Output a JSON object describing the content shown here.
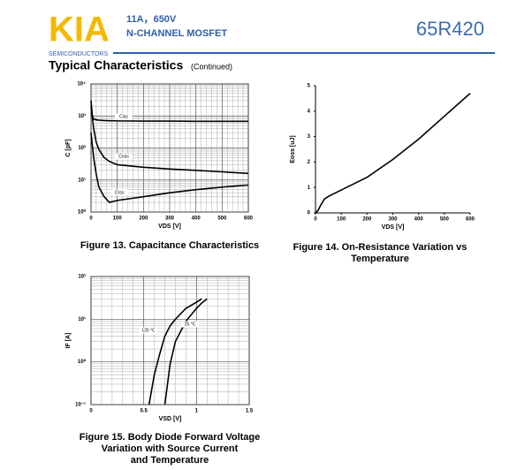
{
  "header": {
    "logo": "KIA",
    "company": "SEMICONDUCTORS",
    "rating": "11A，650V",
    "device": "N-CHANNEL MOSFET",
    "part_number": "65R420",
    "section": "Typical Characteristics",
    "section_note": "(Continued)"
  },
  "chart_data": [
    {
      "type": "line",
      "caption": [
        "Figure 13. Capacitance Characteristics"
      ],
      "x_label": "VDS [V]",
      "y_label": "C [pF]",
      "log_y": true,
      "grid": true,
      "x": [
        0,
        5,
        10,
        20,
        30,
        50,
        70,
        100,
        200,
        300,
        400,
        500,
        600
      ],
      "series": [
        {
          "name": "Ciss",
          "color": "#000000",
          "values": [
            3000,
            1000,
            800,
            760,
            740,
            720,
            710,
            700,
            690,
            690,
            680,
            680,
            680
          ]
        },
        {
          "name": "Coss",
          "color": "#000000",
          "values": [
            2000,
            900,
            400,
            150,
            90,
            50,
            38,
            30,
            25,
            22,
            20,
            18,
            16
          ]
        },
        {
          "name": "Crss",
          "color": "#000000",
          "values": [
            300,
            120,
            50,
            15,
            6,
            3,
            2,
            2.3,
            3,
            4,
            5,
            6,
            7
          ]
        }
      ],
      "xlim": [
        0,
        600
      ],
      "xticks": [
        0,
        100,
        200,
        300,
        400,
        500,
        600
      ],
      "ylim": [
        1,
        10000
      ],
      "yticks": [
        {
          "value": 1,
          "label": "10⁰"
        },
        {
          "value": 10,
          "label": "10¹"
        },
        {
          "value": 100,
          "label": "10²"
        },
        {
          "value": 1000,
          "label": "10³"
        },
        {
          "value": 10000,
          "label": "10⁴"
        }
      ]
    },
    {
      "type": "line",
      "caption": [
        "Figure 14. On-Resistance Variation  vs",
        "Temperature"
      ],
      "x_label": "VDS [V]",
      "y_label": "Eoss [uJ]",
      "log_y": false,
      "grid": false,
      "x": [
        0,
        10,
        20,
        35,
        50,
        100,
        200,
        300,
        400,
        500,
        600
      ],
      "series": [
        {
          "name": null,
          "color": "#000000",
          "values": [
            0,
            0.1,
            0.3,
            0.55,
            0.65,
            0.9,
            1.4,
            2.1,
            2.9,
            3.8,
            4.7
          ]
        }
      ],
      "xlim": [
        0,
        600
      ],
      "xticks": [
        0,
        100,
        200,
        300,
        400,
        500,
        600
      ],
      "ylim": [
        0,
        5
      ],
      "yticks": [
        0,
        1,
        2,
        3,
        4,
        5
      ]
    },
    {
      "type": "line",
      "caption": [
        "Figure 15. Body Diode Forward Voltage",
        "Variation with Source Current",
        "and Temperature"
      ],
      "x_label": "VSD [V]",
      "y_label": "IF [A]",
      "log_y": true,
      "grid": true,
      "x": [
        0.55,
        0.6,
        0.65,
        0.7,
        0.75,
        0.8,
        0.9,
        1.0,
        1.05,
        1.1
      ],
      "series": [
        {
          "name": "125 °C",
          "color": "#000000",
          "values": [
            0.1,
            0.5,
            1.5,
            4,
            7,
            10,
            18,
            25,
            30,
            null
          ]
        },
        {
          "name": "25 °C",
          "color": "#000000",
          "values": [
            null,
            null,
            null,
            0.1,
            0.9,
            3,
            9,
            18,
            24,
            30
          ]
        }
      ],
      "xlim": [
        0,
        1.5
      ],
      "xticks": [
        0,
        0.5,
        1,
        1.5
      ],
      "ylim": [
        0.1,
        100
      ],
      "yticks": [
        {
          "value": 0.1,
          "label": "10⁻¹"
        },
        {
          "value": 1,
          "label": "10⁰"
        },
        {
          "value": 10,
          "label": "10¹"
        },
        {
          "value": 100,
          "label": "10²"
        }
      ]
    }
  ]
}
